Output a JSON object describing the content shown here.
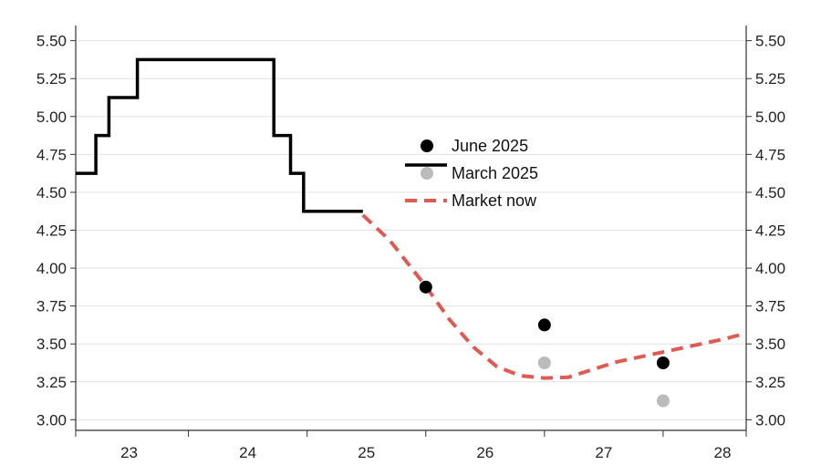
{
  "chart_data": {
    "type": "line",
    "title": "",
    "xlabel": "",
    "ylabel": "",
    "xlim": [
      22.55,
      28.2
    ],
    "ylim": [
      2.93,
      5.6
    ],
    "grid": true,
    "legend_position": "center",
    "x_ticks": [
      {
        "value": 23,
        "label": "23"
      },
      {
        "value": 24,
        "label": "24"
      },
      {
        "value": 25,
        "label": "25"
      },
      {
        "value": 26,
        "label": "26"
      },
      {
        "value": 27,
        "label": "27"
      },
      {
        "value": 28,
        "label": "28"
      }
    ],
    "x_minor_ticks": [
      22.55,
      23.5,
      24.5,
      25.5,
      26.5,
      27.5,
      28.2
    ],
    "y_ticks": [
      {
        "value": 3.0,
        "label": "3.00"
      },
      {
        "value": 3.25,
        "label": "3.25"
      },
      {
        "value": 3.5,
        "label": "3.50"
      },
      {
        "value": 3.75,
        "label": "3.75"
      },
      {
        "value": 4.0,
        "label": "4.00"
      },
      {
        "value": 4.25,
        "label": "4.25"
      },
      {
        "value": 4.5,
        "label": "4.50"
      },
      {
        "value": 4.75,
        "label": "4.75"
      },
      {
        "value": 5.0,
        "label": "5.00"
      },
      {
        "value": 5.25,
        "label": "5.25"
      },
      {
        "value": 5.5,
        "label": "5.50"
      }
    ],
    "series": [
      {
        "name": "June 2025",
        "kind": "points",
        "color": "#000000",
        "points": [
          [
            25.5,
            3.875
          ],
          [
            26.5,
            3.625
          ],
          [
            27.5,
            3.375
          ]
        ]
      },
      {
        "name": "March 2025",
        "kind": "points",
        "color": "#bbbbbb",
        "points": [
          [
            25.5,
            3.875
          ],
          [
            26.5,
            3.375
          ],
          [
            27.5,
            3.125
          ]
        ]
      },
      {
        "name": "Market now",
        "kind": "dashed-line",
        "color": "#e05a52",
        "points": [
          [
            24.97,
            4.35
          ],
          [
            25.2,
            4.18
          ],
          [
            25.5,
            3.88
          ],
          [
            25.7,
            3.66
          ],
          [
            25.9,
            3.48
          ],
          [
            26.1,
            3.35
          ],
          [
            26.3,
            3.29
          ],
          [
            26.5,
            3.275
          ],
          [
            26.7,
            3.28
          ],
          [
            26.9,
            3.33
          ],
          [
            27.1,
            3.38
          ],
          [
            27.4,
            3.43
          ],
          [
            27.7,
            3.48
          ],
          [
            28.0,
            3.53
          ],
          [
            28.2,
            3.57
          ]
        ]
      },
      {
        "name": "",
        "kind": "step-line",
        "color": "#000000",
        "points": [
          [
            22.55,
            4.625
          ],
          [
            22.72,
            4.625
          ],
          [
            22.72,
            4.875
          ],
          [
            22.83,
            4.875
          ],
          [
            22.83,
            5.125
          ],
          [
            23.07,
            5.125
          ],
          [
            23.07,
            5.375
          ],
          [
            24.22,
            5.375
          ],
          [
            24.22,
            4.875
          ],
          [
            24.36,
            4.875
          ],
          [
            24.36,
            4.625
          ],
          [
            24.47,
            4.625
          ],
          [
            24.47,
            4.375
          ],
          [
            24.97,
            4.375
          ]
        ]
      }
    ],
    "legend": [
      {
        "label": "June 2025",
        "marker": "dot",
        "color": "#000000"
      },
      {
        "label": "March 2025",
        "marker": "dot",
        "color": "#bbbbbb"
      },
      {
        "label": "Market now",
        "marker": "dash",
        "color": "#e05a52"
      }
    ],
    "legend_extra_line_color": "#000000",
    "grid_color": "#e2e2e2",
    "axis_color": "#333333"
  }
}
